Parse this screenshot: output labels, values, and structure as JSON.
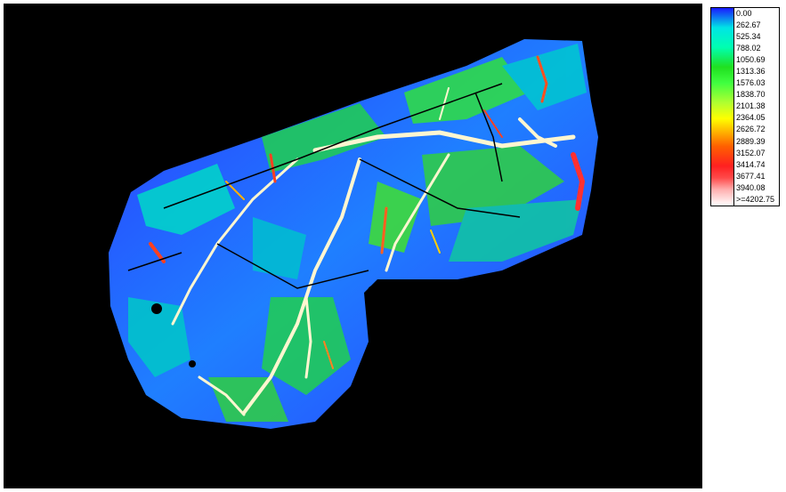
{
  "legend": {
    "labels": [
      "0.00",
      "262.67",
      "525.34",
      "788.02",
      "1050.69",
      "1313.36",
      "1576.03",
      "1838.70",
      "2101.38",
      "2364.05",
      "2626.72",
      "2889.39",
      "3152.07",
      "3414.74",
      "3677.41",
      "3940.08",
      ">=4202.75"
    ],
    "colors": [
      "#1a1aff",
      "#00e5e5",
      "#00ffb0",
      "#20e020",
      "#40ff40",
      "#b0ff30",
      "#ffff00",
      "#ffb000",
      "#ff6000",
      "#ff2020",
      "#ff4a4a",
      "#ffb0b0",
      "#ffffff"
    ]
  },
  "map": {
    "background": "#000000",
    "field_fill": "#1e4cff"
  }
}
